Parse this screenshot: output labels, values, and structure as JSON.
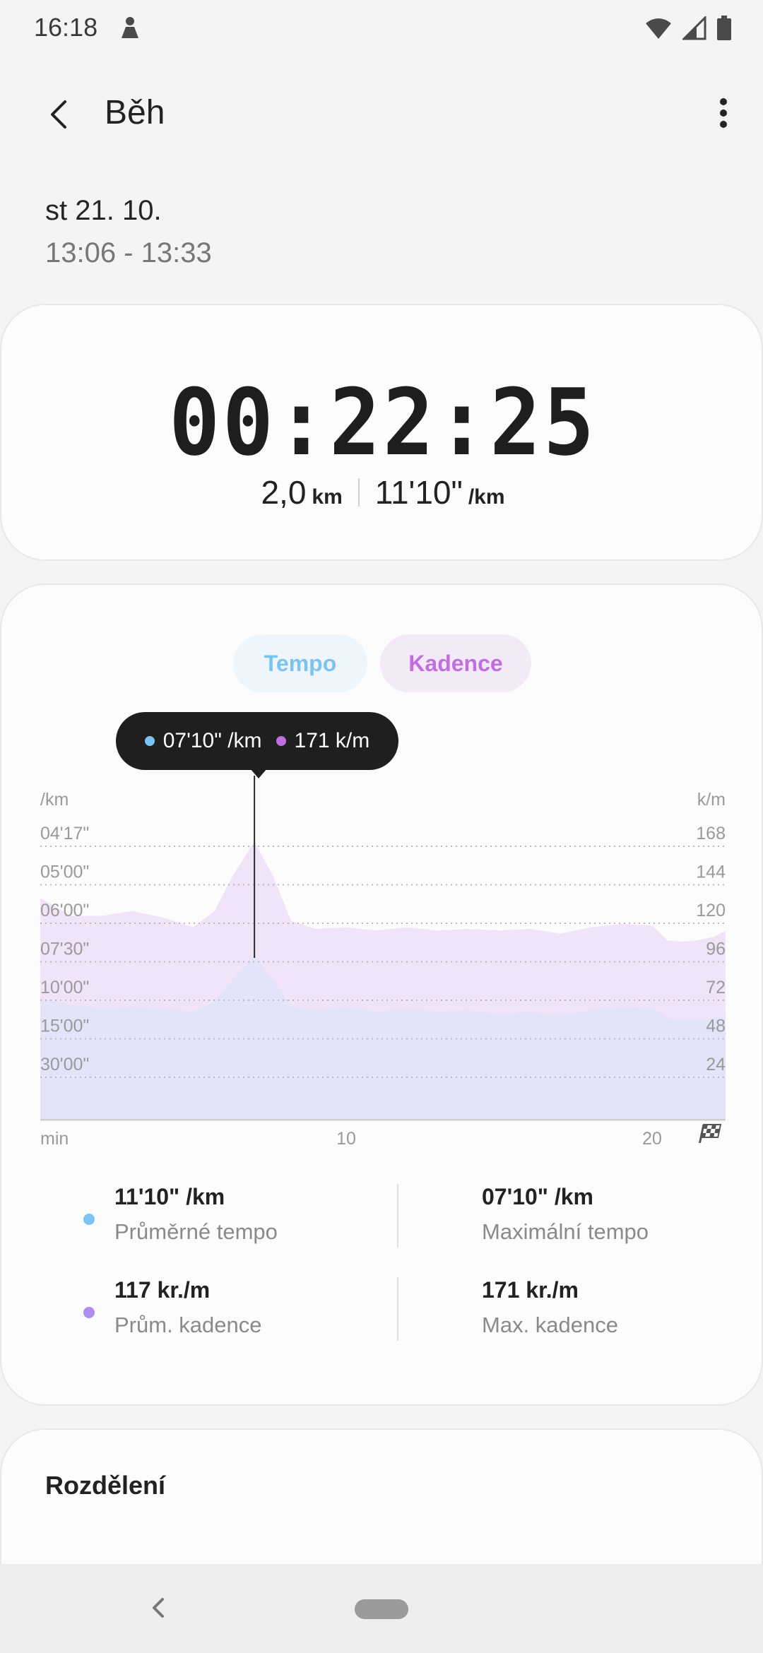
{
  "status_bar": {
    "time": "16:18"
  },
  "app_bar": {
    "title": "Běh"
  },
  "header": {
    "date": "st 21. 10.",
    "time_range": "13:06 - 13:33"
  },
  "summary": {
    "duration": "00:22:25",
    "distance": "2,0",
    "distance_unit": "km",
    "pace": "11'10\"",
    "pace_unit": "/km"
  },
  "tabs": [
    {
      "label": "Tempo",
      "color": "#7cc3f3"
    },
    {
      "label": "Kadence",
      "color": "#c36ee0"
    }
  ],
  "tooltip": {
    "tempo": "07'10\" /km",
    "kadence": "171 k/m"
  },
  "chart_data": {
    "type": "area",
    "left_axis_unit": "/km",
    "right_axis_unit": "k/m",
    "left_ticks": [
      "04'17\"",
      "05'00\"",
      "06'00\"",
      "07'30\"",
      "10'00\"",
      "15'00\"",
      "30'00\""
    ],
    "right_ticks": [
      168,
      144,
      120,
      96,
      72,
      48,
      24
    ],
    "x_label": "min",
    "x_ticks": [
      10,
      20
    ],
    "x_range": [
      0,
      22.4
    ],
    "cadence_range": [
      0,
      168
    ],
    "series": [
      {
        "color": "#c36ee0",
        "x": [
          0,
          1,
          2,
          3,
          4,
          5,
          5.7,
          6.3,
          7,
          7.6,
          8.2,
          9,
          10,
          11,
          12,
          13,
          14,
          15,
          16,
          17,
          18,
          19,
          20,
          20.5,
          21,
          21.5,
          22,
          22.4
        ],
        "values": [
          136,
          125,
          125,
          128,
          124,
          118,
          128,
          150,
          171,
          150,
          122,
          117,
          118,
          116,
          118,
          116,
          117,
          116,
          117,
          114,
          118,
          120,
          119,
          110,
          109,
          110,
          112,
          116
        ]
      },
      {
        "color": "#7cc3f3",
        "x": [
          0,
          1,
          2,
          3,
          4,
          5,
          5.7,
          6.3,
          7,
          7.6,
          8.2,
          9,
          10,
          11,
          12,
          13,
          14,
          15,
          16,
          17,
          18,
          19,
          20,
          20.5,
          21,
          21.5,
          22,
          22.4
        ],
        "values": [
          74,
          70,
          68,
          69,
          68,
          66,
          72,
          86,
          100,
          86,
          69,
          67,
          69,
          66,
          68,
          66,
          67,
          64,
          66,
          63,
          67,
          69,
          68,
          62,
          61,
          61,
          62,
          63
        ]
      }
    ],
    "highlight": {
      "x": 7,
      "tempo": "07'10\" /km",
      "kadence": "171 k/m"
    }
  },
  "stats": [
    {
      "value": "11'10\" /km",
      "label": "Průměrné tempo",
      "value2": "07'10\" /km",
      "label2": "Maximální tempo",
      "color": "#7cc3f3"
    },
    {
      "value": "117 kr./m",
      "label": "Prům. kadence",
      "value2": "171 kr./m",
      "label2": "Max. kadence",
      "color": "#b08ef0"
    }
  ],
  "splits": {
    "title": "Rozdělení"
  }
}
